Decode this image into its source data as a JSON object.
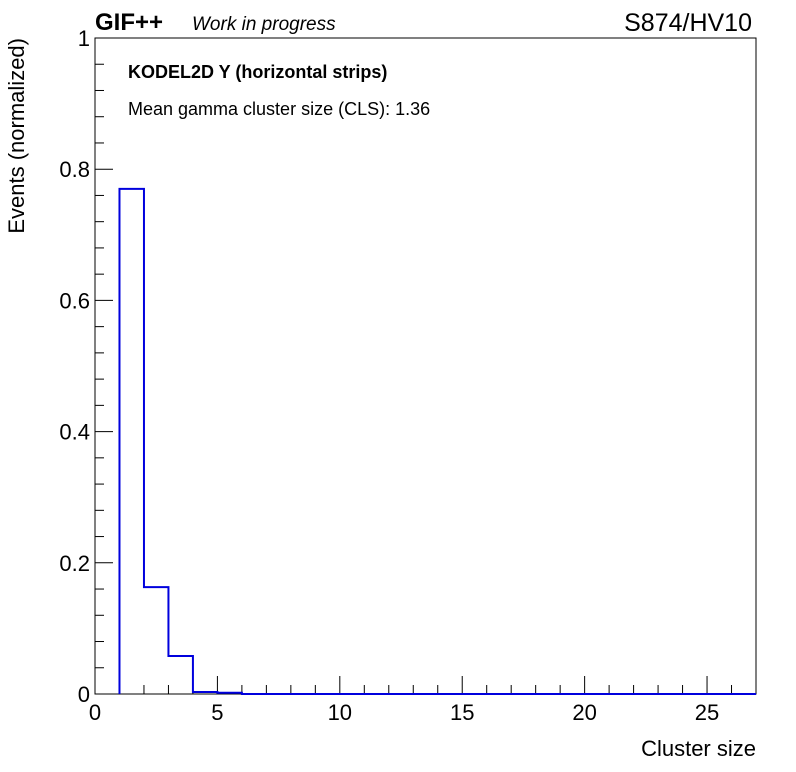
{
  "header": {
    "experiment": "GIF++",
    "status": "Work in progress",
    "run_label": "S874/HV10"
  },
  "chart_data": {
    "type": "bar",
    "style": "step-histogram",
    "title": "KODEL2D Y (horizontal strips)",
    "annotation": "Mean gamma cluster size (CLS): 1.36",
    "xlabel": "Cluster size",
    "ylabel": "Events (normalized)",
    "xlim": [
      0,
      27
    ],
    "ylim": [
      0,
      1
    ],
    "x_ticks": [
      0,
      5,
      10,
      15,
      20,
      25
    ],
    "y_ticks": [
      0,
      0.2,
      0.4,
      0.6,
      0.8,
      1
    ],
    "y_tick_labels": [
      "0",
      "0.2",
      "0.4",
      "0.6",
      "0.8",
      "1"
    ],
    "bins": [
      {
        "x_low": 1,
        "x_high": 2,
        "value": 0.77
      },
      {
        "x_low": 2,
        "x_high": 3,
        "value": 0.163
      },
      {
        "x_low": 3,
        "x_high": 4,
        "value": 0.058
      },
      {
        "x_low": 4,
        "x_high": 5,
        "value": 0.003
      },
      {
        "x_low": 5,
        "x_high": 6,
        "value": 0.002
      },
      {
        "x_low": 6,
        "x_high": 27,
        "value": 0
      }
    ],
    "line_color": "#0000dd",
    "grid": false,
    "legend": "none"
  }
}
